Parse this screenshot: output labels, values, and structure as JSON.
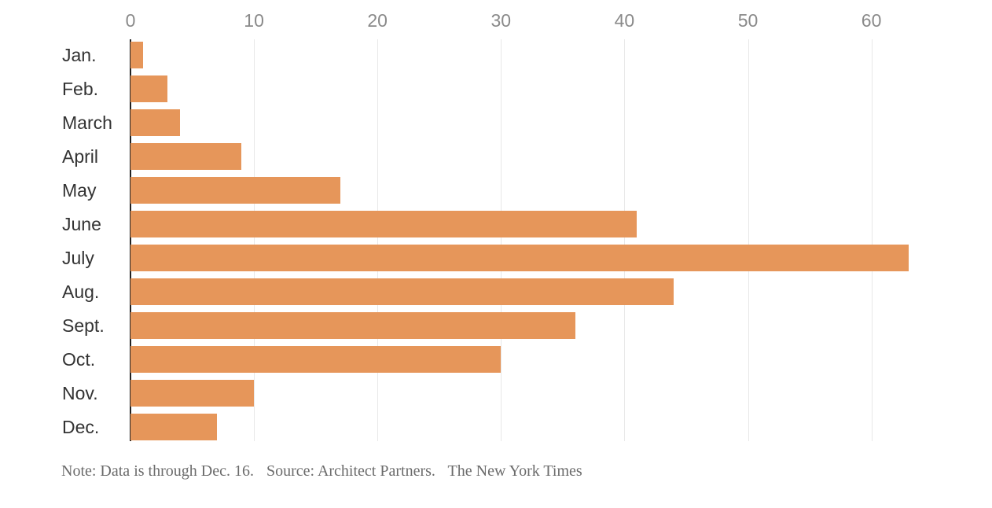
{
  "chart_data": {
    "type": "bar",
    "orientation": "horizontal",
    "categories": [
      "Jan.",
      "Feb.",
      "March",
      "April",
      "May",
      "June",
      "July",
      "Aug.",
      "Sept.",
      "Oct.",
      "Nov.",
      "Dec."
    ],
    "values": [
      1,
      3,
      4,
      9,
      17,
      41,
      63,
      44,
      36,
      30,
      10,
      7
    ],
    "xticks": [
      0,
      10,
      20,
      30,
      40,
      50,
      60
    ],
    "xlim": [
      0,
      70
    ],
    "grid": true,
    "legend": "none",
    "title": "",
    "xlabel": "",
    "ylabel": "",
    "bar_color": "#e6965a",
    "axis_line_color": "#222222",
    "gridline_color": "#e8e8e8",
    "tick_label_color": "#8a8a8a",
    "category_label_color": "#333333"
  },
  "footer": {
    "note": "Note: Data is through Dec. 16.",
    "source": "Source: Architect Partners.",
    "credit": "The New York Times"
  }
}
